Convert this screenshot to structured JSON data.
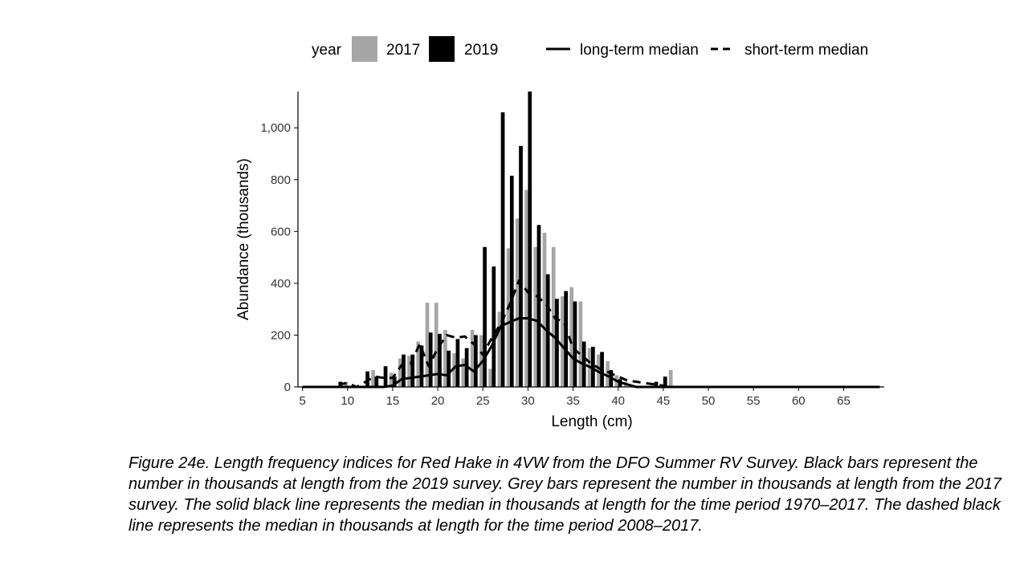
{
  "chart_data": {
    "type": "bar",
    "xlabel": "Length (cm)",
    "ylabel": "Abundance (thousands)",
    "xlim": [
      4.5,
      69.5
    ],
    "ylim": [
      0,
      1140
    ],
    "x_ticks": [
      5,
      10,
      15,
      20,
      25,
      30,
      35,
      40,
      45,
      50,
      55,
      60,
      65
    ],
    "y_ticks": [
      0,
      200,
      400,
      600,
      800,
      1000
    ],
    "y_tick_labels": [
      "0",
      "200",
      "400",
      "600",
      "800",
      "1,000"
    ],
    "x_tick_labels": [
      "5",
      "10",
      "15",
      "20",
      "25",
      "30",
      "35",
      "40",
      "45",
      "50",
      "55",
      "60",
      "65"
    ],
    "grid": false,
    "legend_position": "top",
    "legend": {
      "fill_title": "year",
      "line_items": [
        "long-term median",
        "short-term median"
      ]
    },
    "x": [
      9,
      10,
      11,
      12,
      13,
      14,
      15,
      16,
      17,
      18,
      19,
      20,
      21,
      22,
      23,
      24,
      25,
      26,
      27,
      28,
      29,
      30,
      31,
      32,
      33,
      34,
      35,
      36,
      37,
      38,
      39,
      40,
      41,
      42,
      43,
      44,
      45,
      46
    ],
    "series": [
      {
        "name": "2017",
        "color": "#a6a6a6",
        "values": [
          0,
          20,
          0,
          0,
          65,
          0,
          55,
          110,
          120,
          175,
          325,
          325,
          220,
          130,
          110,
          220,
          200,
          70,
          290,
          535,
          650,
          760,
          540,
          595,
          540,
          350,
          385,
          330,
          150,
          125,
          100,
          45,
          20,
          0,
          0,
          0,
          0,
          65
        ]
      },
      {
        "name": "2019",
        "color": "#000000",
        "values": [
          20,
          0,
          0,
          60,
          40,
          80,
          40,
          125,
          125,
          160,
          210,
          205,
          140,
          185,
          150,
          200,
          540,
          465,
          1060,
          815,
          930,
          1140,
          625,
          435,
          340,
          370,
          330,
          175,
          155,
          135,
          65,
          30,
          0,
          0,
          0,
          20,
          40,
          0
        ]
      }
    ],
    "lines": [
      {
        "name": "long-term median",
        "style": "solid",
        "color": "#000000",
        "x": [
          5,
          10,
          14,
          15,
          16,
          17,
          18,
          19,
          20,
          21,
          22,
          23,
          24,
          25,
          26,
          27,
          28,
          29,
          30,
          31,
          32,
          33,
          34,
          35,
          36,
          37,
          38,
          39,
          40,
          41,
          42,
          69
        ],
        "values": [
          0,
          0,
          0,
          5,
          30,
          35,
          40,
          45,
          50,
          45,
          80,
          85,
          60,
          100,
          160,
          235,
          250,
          265,
          265,
          255,
          220,
          190,
          150,
          110,
          90,
          75,
          55,
          40,
          20,
          10,
          0,
          0
        ]
      },
      {
        "name": "short-term median",
        "style": "dashed",
        "color": "#000000",
        "x": [
          9,
          10,
          11,
          12,
          13,
          14,
          15,
          16,
          17,
          18,
          19,
          20,
          21,
          22,
          23,
          24,
          25,
          26,
          27,
          28,
          29,
          30,
          31,
          32,
          33,
          34,
          35,
          36,
          37,
          38,
          39,
          40,
          41,
          42,
          43,
          44,
          45
        ],
        "values": [
          10,
          15,
          0,
          20,
          40,
          35,
          35,
          85,
          90,
          165,
          80,
          150,
          200,
          190,
          195,
          165,
          125,
          190,
          245,
          320,
          410,
          365,
          350,
          320,
          265,
          250,
          150,
          120,
          90,
          70,
          55,
          40,
          25,
          20,
          15,
          10,
          5
        ]
      }
    ]
  },
  "caption": "Figure 24e. Length frequency indices for Red Hake in 4VW from the DFO Summer RV Survey. Black bars represent the number in thousands at length from the 2019 survey. Grey bars represent the number in thousands at length from the 2017 survey. The solid black line represents the median in thousands at length for the time period 1970–2017. The dashed black line represents the median in thousands at length for the time period 2008–2017."
}
